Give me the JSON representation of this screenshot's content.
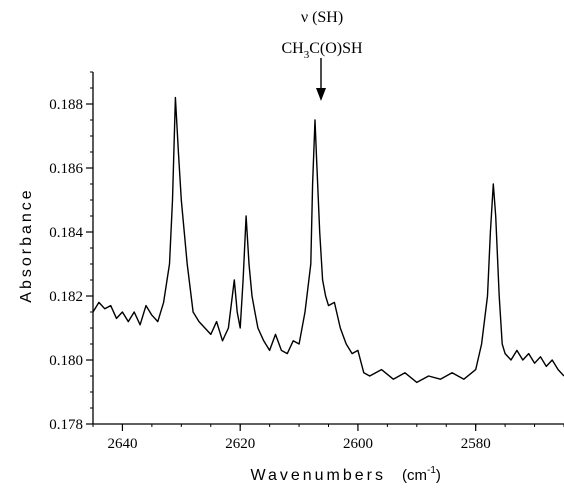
{
  "chart_data": {
    "type": "line",
    "xlabel": "Wavenumbers",
    "xlabel_unit": "(cm",
    "xlabel_unit_sup": "-1",
    "xlabel_unit_close": ")",
    "ylabel": "Absorbance",
    "xlim": [
      2645,
      2565
    ],
    "ylim": [
      0.178,
      0.189
    ],
    "x_reversed": true,
    "grid": false,
    "x_ticks": [
      2640,
      2620,
      2600,
      2580
    ],
    "x_tick_labels": [
      "2640",
      "2620",
      "2600",
      "2580"
    ],
    "y_ticks": [
      0.178,
      0.18,
      0.182,
      0.184,
      0.186,
      0.188
    ],
    "y_tick_labels": [
      "0.178",
      "0.180",
      "0.182",
      "0.184",
      "0.186",
      "0.188"
    ],
    "annotation": {
      "line1": "ν (SH)",
      "ch": "CH",
      "sub": "3",
      "rest": "C(O)SH",
      "x": 2607.3
    },
    "series": [
      {
        "color": "#000000",
        "x": [
          2645,
          2644,
          2643,
          2642,
          2641,
          2640,
          2639,
          2638,
          2637,
          2636,
          2635,
          2634,
          2633,
          2632,
          2631.5,
          2631,
          2630.5,
          2630,
          2629,
          2628,
          2627,
          2626,
          2625,
          2624,
          2623,
          2622,
          2621,
          2620.5,
          2620,
          2619.5,
          2619,
          2618.5,
          2618,
          2617.5,
          2617,
          2616,
          2615,
          2614,
          2613,
          2612,
          2611,
          2610,
          2609,
          2608,
          2607.7,
          2607.3,
          2607,
          2606.5,
          2606,
          2605.5,
          2605,
          2604,
          2603,
          2602,
          2601,
          2600,
          2599,
          2598,
          2596,
          2594,
          2592,
          2590,
          2588,
          2586,
          2584,
          2582,
          2580,
          2579,
          2578,
          2577.5,
          2577,
          2576.6,
          2576,
          2575.5,
          2575,
          2574,
          2573,
          2572,
          2571,
          2570,
          2569,
          2568,
          2567,
          2566,
          2565
        ],
        "y": [
          0.1815,
          0.1818,
          0.1816,
          0.1817,
          0.1813,
          0.1815,
          0.1812,
          0.1815,
          0.1811,
          0.1817,
          0.1814,
          0.1812,
          0.1818,
          0.183,
          0.185,
          0.1882,
          0.1865,
          0.185,
          0.183,
          0.1815,
          0.1812,
          0.181,
          0.1808,
          0.1812,
          0.1806,
          0.181,
          0.1825,
          0.1815,
          0.181,
          0.1825,
          0.1845,
          0.183,
          0.182,
          0.1815,
          0.181,
          0.1806,
          0.1803,
          0.1808,
          0.1803,
          0.1802,
          0.1806,
          0.1805,
          0.1815,
          0.183,
          0.1855,
          0.1875,
          0.1862,
          0.184,
          0.1825,
          0.182,
          0.1817,
          0.1818,
          0.181,
          0.1805,
          0.1802,
          0.1803,
          0.1796,
          0.1795,
          0.1797,
          0.1794,
          0.1796,
          0.1793,
          0.1795,
          0.1794,
          0.1796,
          0.1794,
          0.1797,
          0.1805,
          0.182,
          0.184,
          0.1855,
          0.1845,
          0.182,
          0.1805,
          0.1802,
          0.18,
          0.1803,
          0.18,
          0.1802,
          0.1799,
          0.1801,
          0.1798,
          0.18,
          0.1797,
          0.1795
        ]
      }
    ]
  }
}
